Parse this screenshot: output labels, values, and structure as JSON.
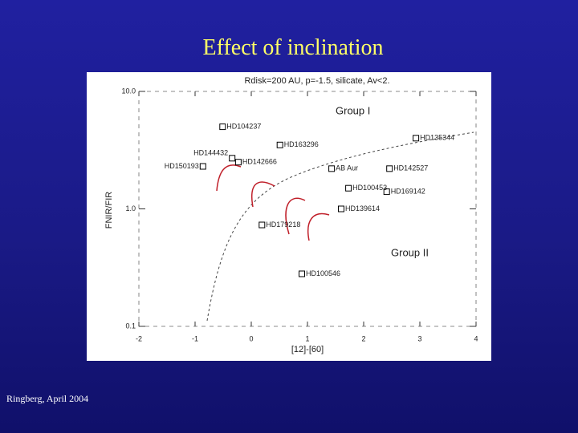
{
  "slide_title": "Effect of inclination",
  "footer": "Ringberg, April 2004",
  "chart_data": {
    "type": "scatter",
    "title": "Rdisk=200 AU, p=-1.5, silicate, Av<2.",
    "xlabel": "[12]-[60]",
    "ylabel": "FNIR/FIR",
    "x": [
      -0.51,
      0.51,
      -0.34,
      -0.86,
      -0.23,
      2.93,
      2.46,
      1.43,
      1.73,
      2.41,
      1.6,
      0.19,
      0.9
    ],
    "values": [
      5.0,
      3.5,
      2.7,
      2.3,
      2.5,
      4.0,
      2.2,
      2.2,
      1.5,
      1.4,
      1.0,
      0.73,
      0.28
    ],
    "point_labels": [
      "HD104237",
      "HD163296",
      "HD144432",
      "HD150193",
      "HD142666",
      "HD135344",
      "HD142527",
      "AB Aur",
      "HD100453",
      "HD169142",
      "HD139614",
      "HD179218",
      "HD100546"
    ],
    "color": "#000000",
    "xlim": [
      -2,
      4
    ],
    "xticks": [
      -2,
      -1,
      0,
      1,
      2,
      3,
      4
    ],
    "ylim": [
      0.1,
      10
    ],
    "yticks": [
      0.1,
      {
        "value": 1,
        "label": "1.0"
      },
      {
        "value": 10,
        "label": "10.0"
      }
    ],
    "ylog": true,
    "annotations": [
      "Group I",
      "Group II"
    ]
  }
}
